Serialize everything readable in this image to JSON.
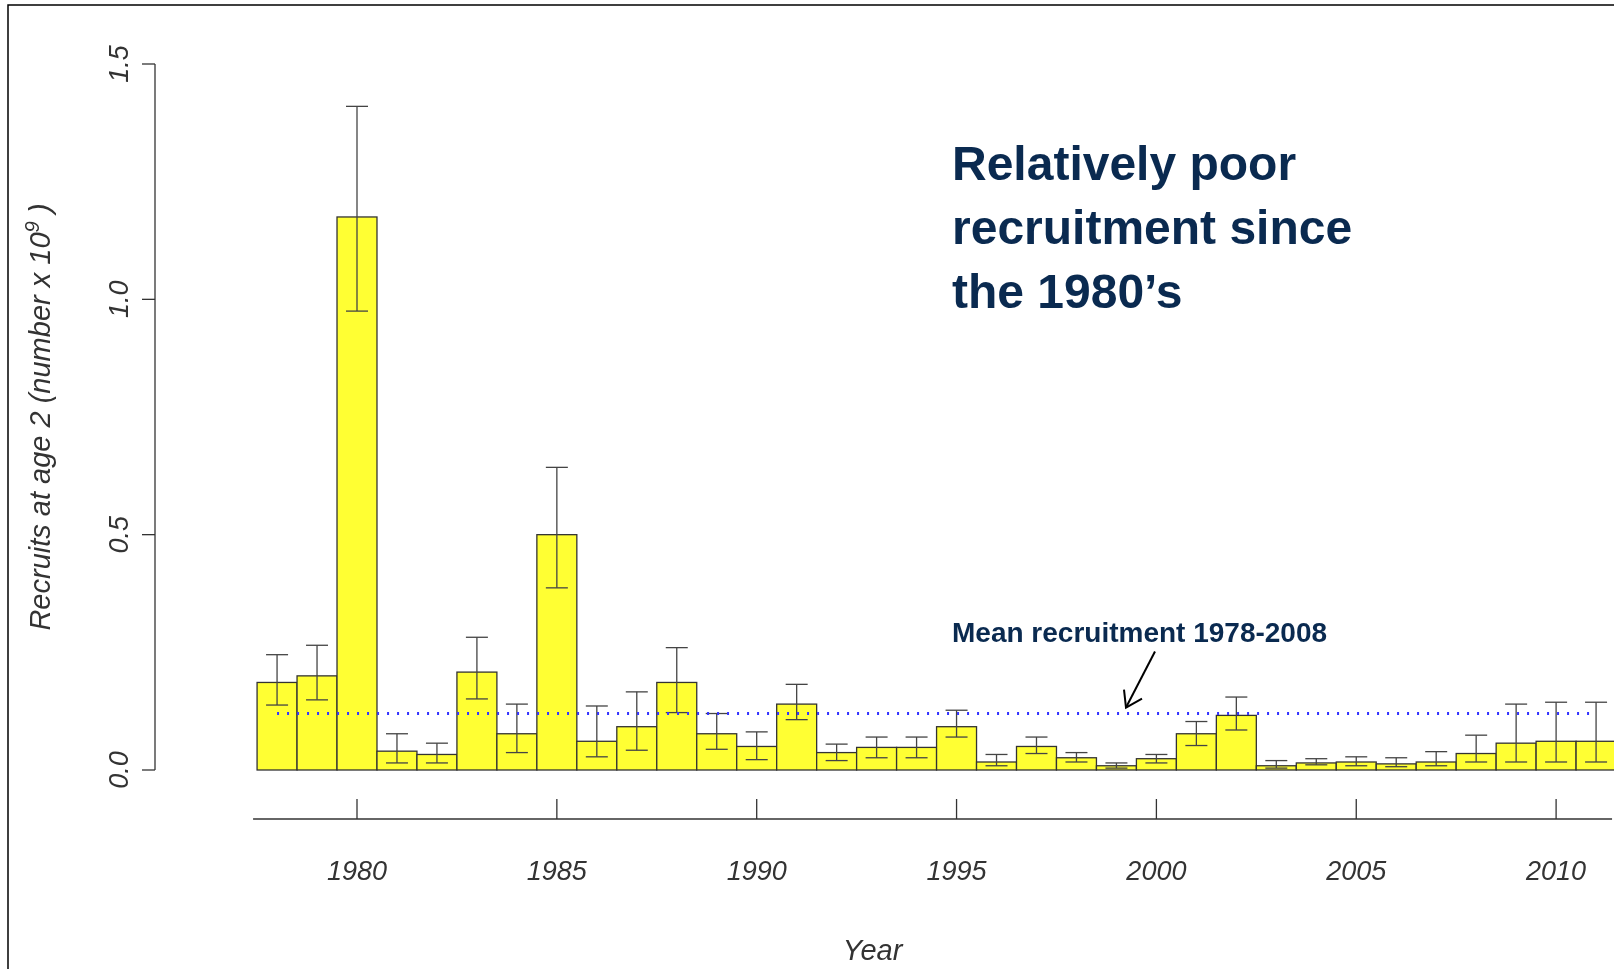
{
  "chart_data": {
    "type": "bar",
    "xlabel": "Year",
    "ylabel": "Recruits at age 2 (number x 10$^{9}$ )",
    "x": [
      1978,
      1979,
      1980,
      1981,
      1982,
      1983,
      1984,
      1985,
      1986,
      1987,
      1988,
      1989,
      1990,
      1991,
      1992,
      1993,
      1994,
      1995,
      1996,
      1997,
      1998,
      1999,
      2000,
      2001,
      2002,
      2003,
      2004,
      2005,
      2006,
      2007,
      2008,
      2009,
      2010,
      2011
    ],
    "values": [
      0.186,
      0.2,
      1.175,
      0.04,
      0.033,
      0.208,
      0.077,
      0.5,
      0.061,
      0.092,
      0.186,
      0.077,
      0.05,
      0.14,
      0.037,
      0.048,
      0.048,
      0.092,
      0.017,
      0.05,
      0.026,
      0.009,
      0.024,
      0.077,
      0.116,
      0.009,
      0.015,
      0.017,
      0.013,
      0.017,
      0.035,
      0.057,
      0.061,
      0.061
    ],
    "errors": [
      [
        0.138,
        0.245
      ],
      [
        0.149,
        0.265
      ],
      [
        0.975,
        1.41
      ],
      [
        0.015,
        0.077
      ],
      [
        0.015,
        0.057
      ],
      [
        0.151,
        0.282
      ],
      [
        0.037,
        0.14
      ],
      [
        0.387,
        0.643
      ],
      [
        0.028,
        0.136
      ],
      [
        0.042,
        0.166
      ],
      [
        0.122,
        0.26
      ],
      [
        0.044,
        0.12
      ],
      [
        0.022,
        0.081
      ],
      [
        0.107,
        0.182
      ],
      [
        0.02,
        0.055
      ],
      [
        0.026,
        0.07
      ],
      [
        0.026,
        0.07
      ],
      [
        0.07,
        0.127
      ],
      [
        0.009,
        0.033
      ],
      [
        0.035,
        0.07
      ],
      [
        0.017,
        0.037
      ],
      [
        0.004,
        0.015
      ],
      [
        0.015,
        0.033
      ],
      [
        0.052,
        0.103
      ],
      [
        0.085,
        0.155
      ],
      [
        0.004,
        0.02
      ],
      [
        0.011,
        0.024
      ],
      [
        0.009,
        0.028
      ],
      [
        0.007,
        0.026
      ],
      [
        0.009,
        0.039
      ],
      [
        0.017,
        0.074
      ],
      [
        0.017,
        0.14
      ],
      [
        0.017,
        0.144
      ],
      [
        0.017,
        0.144
      ]
    ],
    "color": "#ffff33",
    "xlim": [
      1977.4,
      2011.4
    ],
    "ylim": [
      0,
      1.5
    ],
    "xticks": [
      1980,
      1985,
      1990,
      1995,
      2000,
      2005,
      2010
    ],
    "yticks": [
      {
        "value": 0,
        "label": "0.0"
      },
      {
        "value": 0.5,
        "label": "0.5"
      },
      {
        "value": 1,
        "label": "1.0"
      },
      {
        "value": 1.5,
        "label": "1.5"
      }
    ],
    "ref_lines": [
      {
        "axis": "y",
        "value": 0.12,
        "label": "Mean recruitment 1978-2008",
        "color": "#3333ff",
        "line_style": "dotted"
      }
    ],
    "annotations": [
      "Relatively poor recruitment since the 1980’s"
    ]
  }
}
